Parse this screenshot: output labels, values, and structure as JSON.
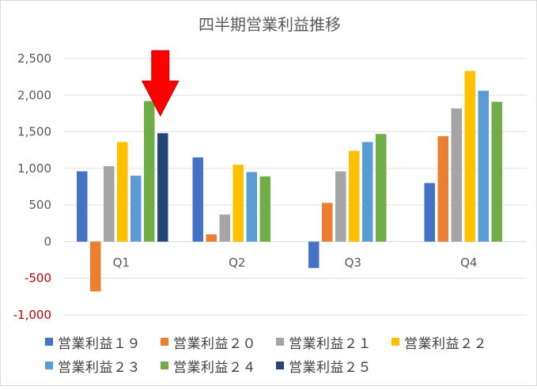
{
  "chart_data": {
    "type": "bar",
    "title": "四半期営業利益推移",
    "categories": [
      "Q1",
      "Q2",
      "Q3",
      "Q4"
    ],
    "ylim": [
      -1000,
      2500
    ],
    "yticks": [
      "2,500",
      "2,000",
      "1,500",
      "1,000",
      "500",
      "0",
      "-500",
      "-1,000"
    ],
    "ytick_values": [
      2500,
      2000,
      1500,
      1000,
      500,
      0,
      -500,
      -1000
    ],
    "grid": true,
    "legend_position": "bottom",
    "series": [
      {
        "name": "営業利益１９",
        "color": "#4472C4",
        "values": [
          960,
          1150,
          -360,
          800
        ]
      },
      {
        "name": "営業利益２０",
        "color": "#ED7D31",
        "values": [
          -680,
          100,
          530,
          1440
        ]
      },
      {
        "name": "営業利益２１",
        "color": "#A5A5A5",
        "values": [
          1030,
          370,
          960,
          1820
        ]
      },
      {
        "name": "営業利益２２",
        "color": "#FFC000",
        "values": [
          1360,
          1050,
          1240,
          2330
        ]
      },
      {
        "name": "営業利益２３",
        "color": "#5B9BD5",
        "values": [
          900,
          950,
          1360,
          2060
        ]
      },
      {
        "name": "営業利益２４",
        "color": "#70AD47",
        "values": [
          1920,
          890,
          1470,
          1910
        ]
      },
      {
        "name": "営業利益２５",
        "color": "#264478",
        "values": [
          1480,
          null,
          null,
          null
        ]
      }
    ],
    "annotation": {
      "type": "arrow",
      "color": "#FF0000",
      "target_series": "営業利益２５",
      "target_category": "Q1"
    },
    "negative_tick_color": "#C00000"
  }
}
